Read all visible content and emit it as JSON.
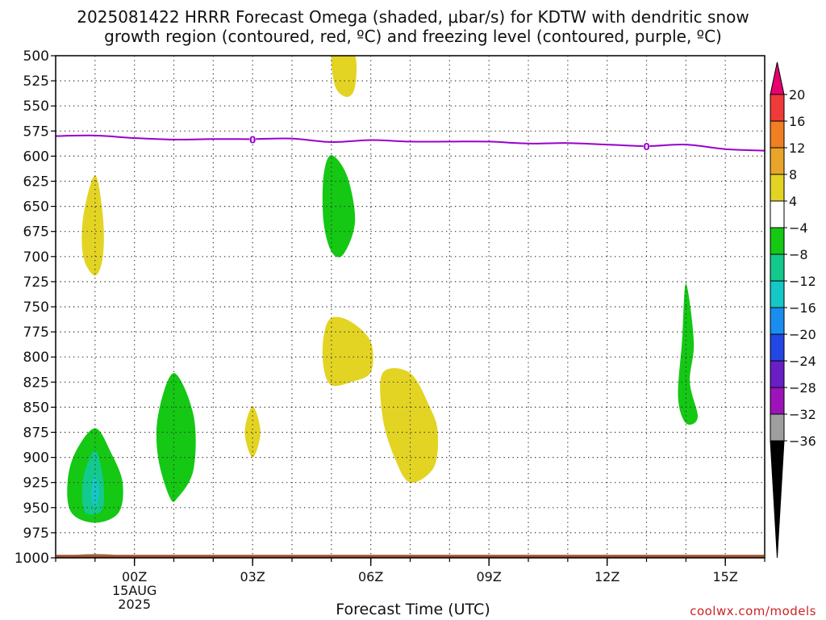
{
  "title": {
    "line1": "2025081422 HRRR Forecast Omega (shaded, μbar/s) for KDTW with dendritic snow",
    "line2": "growth region (contoured, red, ºC) and freezing level (contoured, purple, ºC)"
  },
  "xlabel": "Forecast Time (UTC)",
  "credit": "coolwx.com/models",
  "chart_data": {
    "type": "heatmap",
    "x_unit": "hours since 2025-08-15 00Z",
    "xlim": [
      -2,
      16
    ],
    "x_ticks": [
      {
        "value": 0,
        "label": "00Z",
        "sub": [
          "15AUG",
          "2025"
        ]
      },
      {
        "value": 3,
        "label": "03Z",
        "sub": []
      },
      {
        "value": 6,
        "label": "06Z",
        "sub": []
      },
      {
        "value": 9,
        "label": "09Z",
        "sub": []
      },
      {
        "value": 12,
        "label": "12Z",
        "sub": []
      },
      {
        "value": 15,
        "label": "15Z",
        "sub": []
      }
    ],
    "y_unit": "pressure (hPa)",
    "ylim": [
      1000,
      500
    ],
    "y_ticks": [
      500,
      525,
      550,
      575,
      600,
      625,
      650,
      675,
      700,
      725,
      750,
      775,
      800,
      825,
      850,
      875,
      900,
      925,
      950,
      975,
      1000
    ],
    "grid": true,
    "colorbar": {
      "labels": [
        "20",
        "16",
        "12",
        "8",
        "4",
        "−4",
        "−8",
        "−12",
        "−16",
        "−20",
        "−24",
        "−28",
        "−32",
        "−36"
      ],
      "colors": [
        "#e8006e",
        "#f03a3a",
        "#ef7f22",
        "#e8a52a",
        "#e3d424",
        "#ffffff",
        "#14c814",
        "#13c98b",
        "#16c7c7",
        "#1a8ef0",
        "#2247e5",
        "#6a1ec5",
        "#9c14b9",
        "#9e9e9e",
        "#000000"
      ]
    },
    "freezing_level": {
      "color": "#9900cc",
      "label": "0",
      "label_x": [
        3,
        13
      ],
      "points": [
        [
          -2,
          580
        ],
        [
          -1,
          579.5
        ],
        [
          0,
          582
        ],
        [
          1,
          583.5
        ],
        [
          2,
          583
        ],
        [
          3,
          583
        ],
        [
          4,
          582.5
        ],
        [
          5,
          586
        ],
        [
          6,
          584
        ],
        [
          7,
          585.5
        ],
        [
          8,
          585.5
        ],
        [
          9,
          585.5
        ],
        [
          10,
          587.5
        ],
        [
          11,
          587
        ],
        [
          12,
          588.5
        ],
        [
          13,
          590
        ],
        [
          14,
          588.5
        ],
        [
          15,
          593
        ],
        [
          16,
          594.5
        ]
      ]
    },
    "omega_regions": [
      {
        "value": "4 to 8",
        "color": "#e3d424",
        "points": [
          [
            5.2,
            500
          ],
          [
            5.6,
            500
          ],
          [
            5.6,
            531
          ],
          [
            5.4,
            541
          ],
          [
            5.1,
            531
          ],
          [
            5.0,
            500
          ]
        ]
      },
      {
        "value": "4 to 8",
        "color": "#e3d424",
        "points": [
          [
            -1.0,
            619
          ],
          [
            -0.8,
            660
          ],
          [
            -0.8,
            700
          ],
          [
            -1.0,
            719
          ],
          [
            -1.3,
            700
          ],
          [
            -1.3,
            660
          ]
        ]
      },
      {
        "value": "-4 to -8",
        "color": "#14c814",
        "points": [
          [
            5.0,
            599
          ],
          [
            5.4,
            620
          ],
          [
            5.6,
            665
          ],
          [
            5.3,
            698
          ],
          [
            5.0,
            695
          ],
          [
            4.8,
            665
          ],
          [
            4.8,
            620
          ]
        ]
      },
      {
        "value": "4 to 8",
        "color": "#e3d424",
        "points": [
          [
            5.0,
            761
          ],
          [
            5.5,
            765
          ],
          [
            6.0,
            785
          ],
          [
            6.0,
            815
          ],
          [
            5.5,
            825
          ],
          [
            5.0,
            828
          ],
          [
            4.8,
            810
          ],
          [
            4.8,
            780
          ]
        ]
      },
      {
        "value": "-4 to -8",
        "color": "#14c814",
        "points": [
          [
            14.0,
            727
          ],
          [
            14.2,
            785
          ],
          [
            14.1,
            825
          ],
          [
            14.3,
            860
          ],
          [
            14.0,
            866
          ],
          [
            13.8,
            840
          ],
          [
            13.9,
            785
          ]
        ]
      },
      {
        "value": "-4 to -8",
        "color": "#14c814",
        "points": [
          [
            1.0,
            816
          ],
          [
            1.5,
            858
          ],
          [
            1.5,
            912
          ],
          [
            1.1,
            940
          ],
          [
            0.9,
            940
          ],
          [
            0.6,
            900
          ],
          [
            0.6,
            858
          ]
        ]
      },
      {
        "value": "4 to 8",
        "color": "#e3d424",
        "points": [
          [
            3.0,
            849
          ],
          [
            3.2,
            875
          ],
          [
            3.0,
            900
          ],
          [
            2.8,
            875
          ]
        ]
      },
      {
        "value": "4 to 8",
        "color": "#e3d424",
        "points": [
          [
            6.3,
            816
          ],
          [
            7.0,
            816
          ],
          [
            7.5,
            850
          ],
          [
            7.7,
            875
          ],
          [
            7.6,
            910
          ],
          [
            7.0,
            925
          ],
          [
            6.6,
            900
          ],
          [
            6.3,
            860
          ]
        ]
      },
      {
        "value": "-4 to -8",
        "color": "#14c814",
        "points": [
          [
            -1.0,
            871
          ],
          [
            -0.6,
            895
          ],
          [
            -0.3,
            925
          ],
          [
            -0.4,
            955
          ],
          [
            -1.0,
            965
          ],
          [
            -1.6,
            955
          ],
          [
            -1.7,
            925
          ],
          [
            -1.5,
            895
          ]
        ]
      },
      {
        "value": "-8 to -12",
        "color": "#13c98b",
        "points": [
          [
            -1.0,
            893
          ],
          [
            -0.8,
            920
          ],
          [
            -0.8,
            950
          ],
          [
            -1.1,
            957
          ],
          [
            -1.3,
            950
          ],
          [
            -1.3,
            920
          ]
        ]
      },
      {
        "value": "-12 to -16",
        "color": "#16c7c7",
        "points": [
          [
            -1.0,
            918
          ],
          [
            -0.9,
            935
          ],
          [
            -1.0,
            950
          ],
          [
            -1.1,
            935
          ]
        ]
      }
    ],
    "terrain": {
      "color": "#a0522d",
      "top_y": 997
    }
  }
}
